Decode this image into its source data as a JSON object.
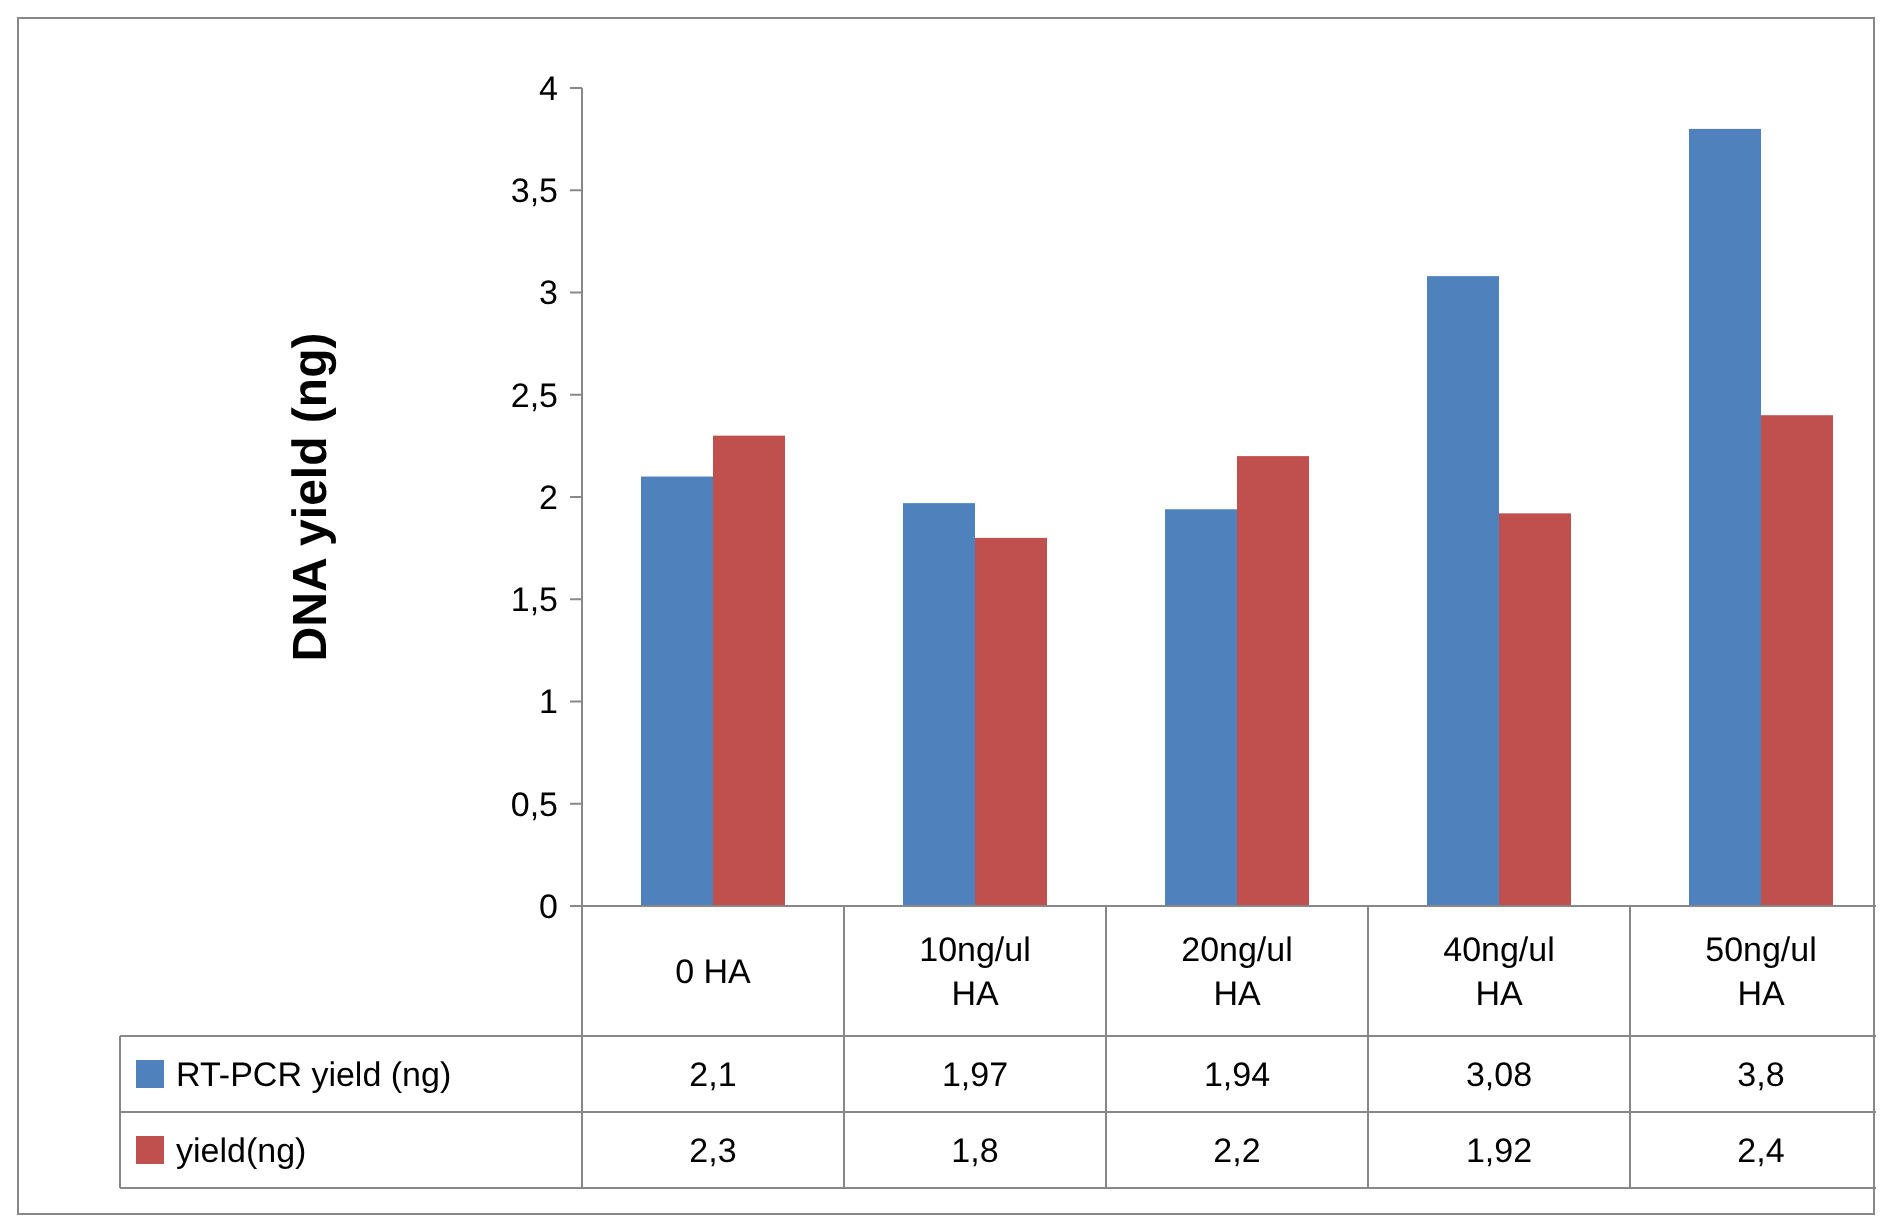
{
  "chart_data": {
    "type": "bar",
    "ylabel": "DNA yield (ng)",
    "categories": [
      "0 HA",
      "10ng/ul HA",
      "20ng/ul HA",
      "40ng/ul HA",
      "50ng/ul HA"
    ],
    "series": [
      {
        "name": "RT-PCR yield (ng)",
        "color": "#4f81bd",
        "values": [
          2.1,
          1.97,
          1.94,
          3.08,
          3.8
        ],
        "value_labels": [
          "2,1",
          "1,97",
          "1,94",
          "3,08",
          "3,8"
        ]
      },
      {
        "name": "yield(ng)",
        "color": "#c0504d",
        "values": [
          2.3,
          1.8,
          2.2,
          1.92,
          2.4
        ],
        "value_labels": [
          "2,3",
          "1,8",
          "2,2",
          "1,92",
          "2,4"
        ]
      }
    ],
    "ylim": [
      0,
      4
    ],
    "yticks": [
      0,
      {
        "value": 0.5,
        "label": "0,5"
      },
      1,
      {
        "value": 1.5,
        "label": "1,5"
      },
      2,
      {
        "value": 2.5,
        "label": "2,5"
      },
      3,
      {
        "value": 3.5,
        "label": "3,5"
      },
      4
    ],
    "grid": false,
    "legend": "bottom"
  }
}
